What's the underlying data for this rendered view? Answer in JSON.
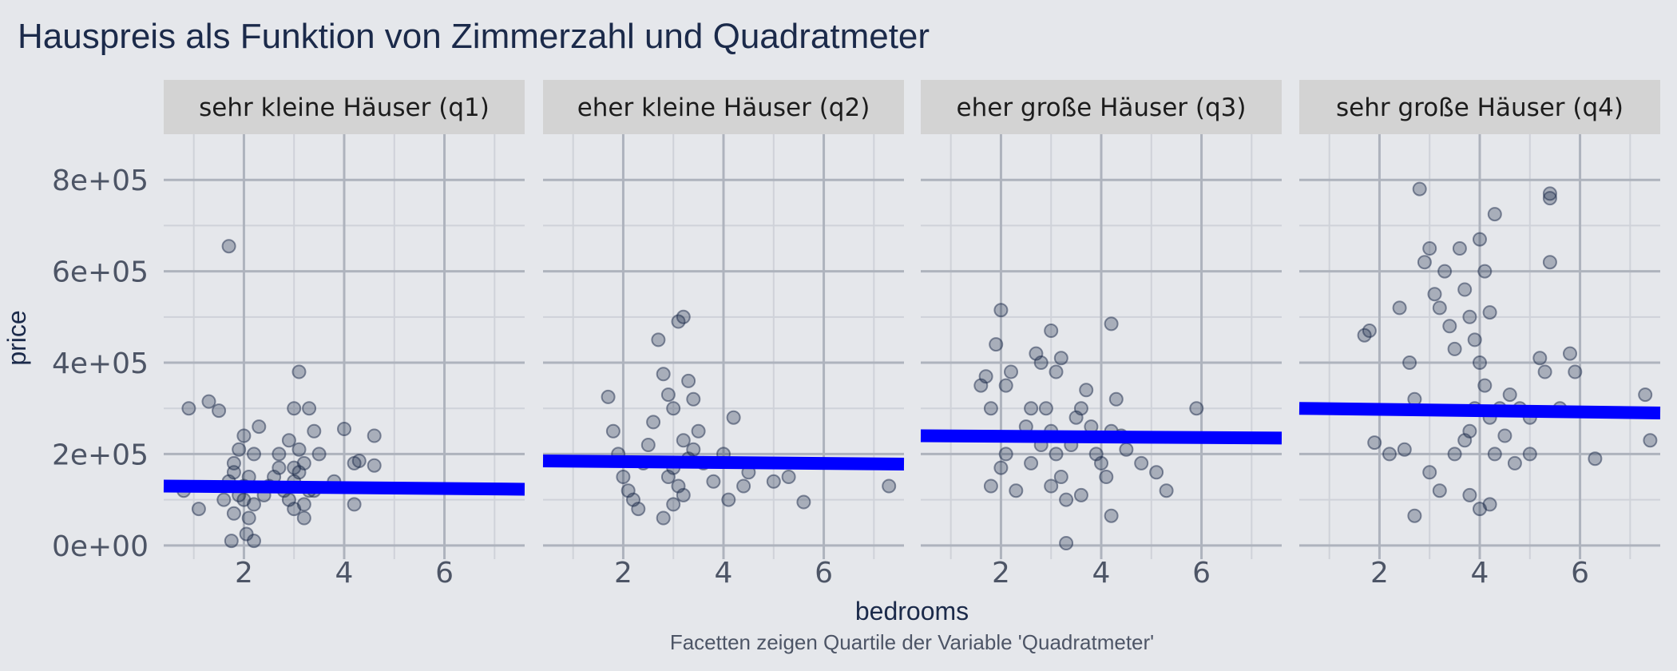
{
  "chart_data": {
    "type": "scatter",
    "title": "Hauspreis als Funktion von Zimmerzahl und Quadratmeter",
    "xlabel": "bedrooms",
    "ylabel": "price",
    "caption": "Facetten zeigen Quartile der Variable 'Quadratmeter'",
    "xlim": [
      0.4,
      7.6
    ],
    "ylim": [
      -30000,
      900000
    ],
    "x_ticks": [
      2,
      4,
      6
    ],
    "x_tick_labels": [
      "2",
      "4",
      "6"
    ],
    "y_ticks": [
      0,
      200000,
      400000,
      600000,
      800000
    ],
    "y_tick_labels": [
      "0e+00",
      "2e+05",
      "4e+05",
      "6e+05",
      "8e+05"
    ],
    "grid": true,
    "point_color": "#1b2a4a",
    "line_color": "#0000ff",
    "panels": [
      {
        "label": "sehr kleine Häuser (q1)",
        "trend": {
          "x": [
            0.4,
            7.6
          ],
          "y": [
            130000,
            123000
          ]
        },
        "points": [
          [
            0.8,
            120000
          ],
          [
            0.9,
            300000
          ],
          [
            1.1,
            80000
          ],
          [
            1.3,
            315000
          ],
          [
            1.5,
            295000
          ],
          [
            1.7,
            655000
          ],
          [
            1.6,
            100000
          ],
          [
            1.7,
            140000
          ],
          [
            1.8,
            160000
          ],
          [
            1.9,
            110000
          ],
          [
            2.0,
            130000
          ],
          [
            2.1,
            150000
          ],
          [
            2.2,
            90000
          ],
          [
            1.8,
            70000
          ],
          [
            1.9,
            210000
          ],
          [
            2.0,
            240000
          ],
          [
            2.3,
            260000
          ],
          [
            2.1,
            60000
          ],
          [
            1.75,
            10000
          ],
          [
            2.05,
            25000
          ],
          [
            2.2,
            10000
          ],
          [
            2.4,
            110000
          ],
          [
            2.5,
            130000
          ],
          [
            2.6,
            150000
          ],
          [
            2.7,
            170000
          ],
          [
            2.8,
            120000
          ],
          [
            2.9,
            100000
          ],
          [
            3.0,
            140000
          ],
          [
            3.1,
            160000
          ],
          [
            3.2,
            180000
          ],
          [
            3.3,
            120000
          ],
          [
            2.9,
            230000
          ],
          [
            3.0,
            300000
          ],
          [
            3.1,
            210000
          ],
          [
            3.2,
            90000
          ],
          [
            3.4,
            250000
          ],
          [
            3.5,
            200000
          ],
          [
            3.1,
            380000
          ],
          [
            3.3,
            300000
          ],
          [
            3.2,
            60000
          ],
          [
            3.4,
            120000
          ],
          [
            3.8,
            140000
          ],
          [
            4.0,
            255000
          ],
          [
            4.2,
            90000
          ],
          [
            4.2,
            180000
          ],
          [
            4.3,
            185000
          ],
          [
            4.6,
            175000
          ],
          [
            4.6,
            240000
          ],
          [
            3.0,
            80000
          ],
          [
            2.0,
            100000
          ],
          [
            1.8,
            180000
          ],
          [
            2.2,
            200000
          ],
          [
            2.7,
            200000
          ],
          [
            3.0,
            170000
          ]
        ]
      },
      {
        "label": "eher kleine Häuser (q2)",
        "trend": {
          "x": [
            0.4,
            7.6
          ],
          "y": [
            185000,
            178000
          ]
        },
        "points": [
          [
            1.7,
            325000
          ],
          [
            1.8,
            250000
          ],
          [
            1.9,
            200000
          ],
          [
            2.0,
            150000
          ],
          [
            2.1,
            120000
          ],
          [
            2.2,
            100000
          ],
          [
            2.3,
            80000
          ],
          [
            2.4,
            180000
          ],
          [
            2.5,
            220000
          ],
          [
            2.6,
            270000
          ],
          [
            2.7,
            450000
          ],
          [
            2.8,
            375000
          ],
          [
            2.9,
            330000
          ],
          [
            3.0,
            300000
          ],
          [
            3.1,
            490000
          ],
          [
            3.2,
            500000
          ],
          [
            3.3,
            360000
          ],
          [
            3.4,
            320000
          ],
          [
            2.9,
            150000
          ],
          [
            3.0,
            170000
          ],
          [
            3.1,
            130000
          ],
          [
            3.2,
            110000
          ],
          [
            3.3,
            190000
          ],
          [
            3.4,
            210000
          ],
          [
            2.8,
            60000
          ],
          [
            3.0,
            90000
          ],
          [
            3.6,
            180000
          ],
          [
            3.8,
            140000
          ],
          [
            4.0,
            200000
          ],
          [
            4.2,
            280000
          ],
          [
            4.1,
            100000
          ],
          [
            4.4,
            130000
          ],
          [
            4.5,
            160000
          ],
          [
            5.0,
            140000
          ],
          [
            5.3,
            150000
          ],
          [
            5.6,
            95000
          ],
          [
            7.3,
            130000
          ],
          [
            3.5,
            250000
          ],
          [
            3.2,
            230000
          ]
        ]
      },
      {
        "label": "eher große Häuser (q3)",
        "trend": {
          "x": [
            0.4,
            7.6
          ],
          "y": [
            240000,
            235000
          ]
        },
        "points": [
          [
            1.6,
            350000
          ],
          [
            1.7,
            370000
          ],
          [
            1.8,
            300000
          ],
          [
            1.9,
            440000
          ],
          [
            2.0,
            515000
          ],
          [
            2.1,
            350000
          ],
          [
            2.2,
            380000
          ],
          [
            1.8,
            130000
          ],
          [
            2.0,
            170000
          ],
          [
            2.1,
            200000
          ],
          [
            2.3,
            120000
          ],
          [
            2.5,
            260000
          ],
          [
            2.6,
            300000
          ],
          [
            2.7,
            420000
          ],
          [
            2.8,
            400000
          ],
          [
            3.0,
            470000
          ],
          [
            3.2,
            410000
          ],
          [
            3.1,
            380000
          ],
          [
            2.9,
            300000
          ],
          [
            3.0,
            250000
          ],
          [
            3.1,
            200000
          ],
          [
            3.2,
            150000
          ],
          [
            3.3,
            100000
          ],
          [
            3.4,
            220000
          ],
          [
            3.5,
            280000
          ],
          [
            3.6,
            300000
          ],
          [
            3.7,
            340000
          ],
          [
            3.8,
            260000
          ],
          [
            3.9,
            200000
          ],
          [
            4.0,
            180000
          ],
          [
            4.1,
            150000
          ],
          [
            4.2,
            250000
          ],
          [
            4.3,
            320000
          ],
          [
            4.2,
            485000
          ],
          [
            4.4,
            240000
          ],
          [
            4.5,
            210000
          ],
          [
            4.8,
            180000
          ],
          [
            5.1,
            160000
          ],
          [
            5.3,
            120000
          ],
          [
            5.9,
            300000
          ],
          [
            4.2,
            65000
          ],
          [
            3.3,
            5000
          ],
          [
            2.6,
            180000
          ],
          [
            2.8,
            220000
          ],
          [
            3.0,
            130000
          ],
          [
            3.6,
            110000
          ]
        ]
      },
      {
        "label": "sehr große Häuser (q4)",
        "trend": {
          "x": [
            0.4,
            7.6
          ],
          "y": [
            300000,
            290000
          ]
        },
        "points": [
          [
            1.7,
            460000
          ],
          [
            1.8,
            470000
          ],
          [
            1.9,
            225000
          ],
          [
            2.2,
            200000
          ],
          [
            2.4,
            520000
          ],
          [
            2.5,
            210000
          ],
          [
            2.6,
            400000
          ],
          [
            2.7,
            320000
          ],
          [
            2.8,
            780000
          ],
          [
            2.9,
            620000
          ],
          [
            3.0,
            650000
          ],
          [
            3.1,
            550000
          ],
          [
            3.2,
            520000
          ],
          [
            3.3,
            600000
          ],
          [
            3.4,
            480000
          ],
          [
            3.5,
            430000
          ],
          [
            3.6,
            650000
          ],
          [
            3.7,
            560000
          ],
          [
            3.8,
            500000
          ],
          [
            3.9,
            450000
          ],
          [
            4.0,
            670000
          ],
          [
            4.1,
            600000
          ],
          [
            4.2,
            510000
          ],
          [
            4.3,
            725000
          ],
          [
            4.0,
            400000
          ],
          [
            4.1,
            350000
          ],
          [
            3.9,
            300000
          ],
          [
            4.2,
            280000
          ],
          [
            3.8,
            250000
          ],
          [
            3.7,
            230000
          ],
          [
            4.3,
            200000
          ],
          [
            4.4,
            300000
          ],
          [
            4.5,
            240000
          ],
          [
            4.6,
            330000
          ],
          [
            4.8,
            300000
          ],
          [
            5.0,
            280000
          ],
          [
            5.2,
            410000
          ],
          [
            5.3,
            380000
          ],
          [
            5.4,
            770000
          ],
          [
            5.4,
            760000
          ],
          [
            5.4,
            620000
          ],
          [
            5.6,
            300000
          ],
          [
            5.8,
            420000
          ],
          [
            5.9,
            380000
          ],
          [
            3.0,
            160000
          ],
          [
            3.2,
            120000
          ],
          [
            3.8,
            110000
          ],
          [
            4.0,
            80000
          ],
          [
            2.7,
            65000
          ],
          [
            4.2,
            90000
          ],
          [
            6.3,
            190000
          ],
          [
            7.3,
            330000
          ],
          [
            7.4,
            230000
          ],
          [
            5.0,
            200000
          ],
          [
            4.7,
            180000
          ],
          [
            3.5,
            200000
          ]
        ]
      }
    ]
  }
}
